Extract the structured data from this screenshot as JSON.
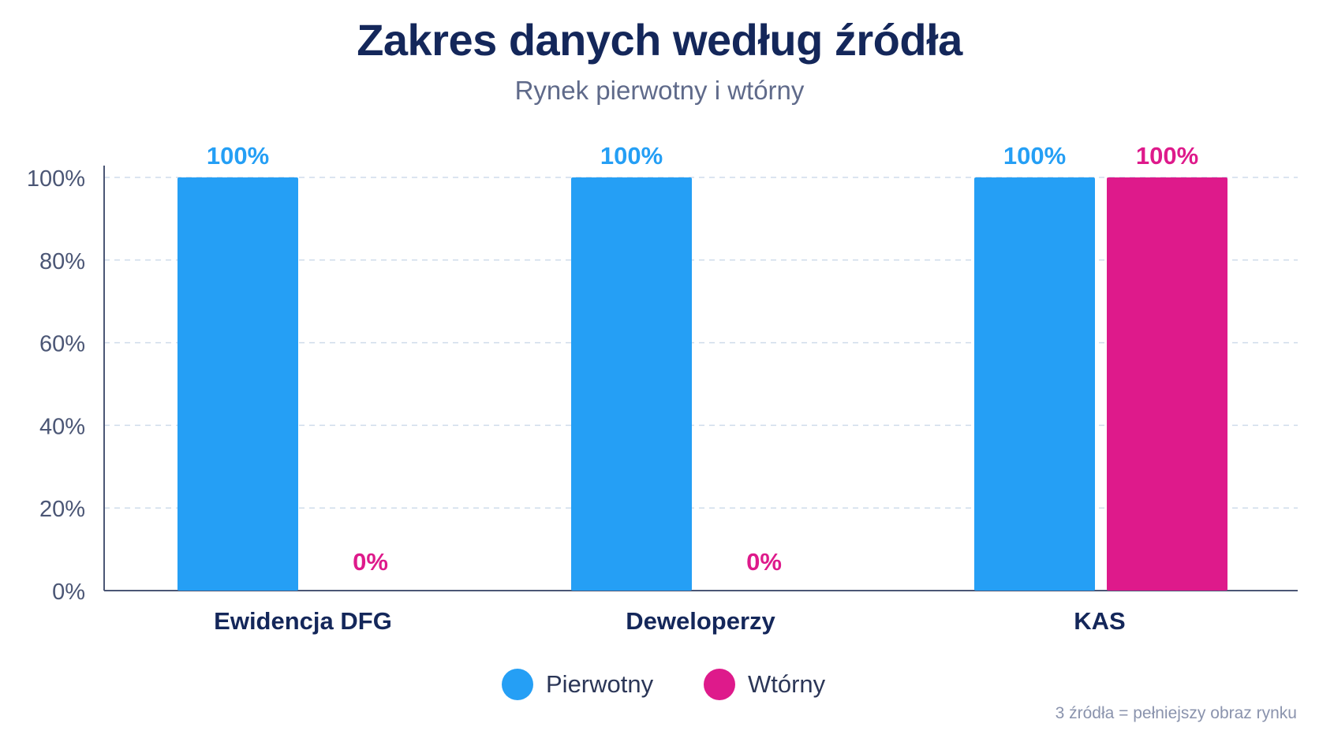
{
  "chart_data": {
    "type": "bar",
    "title": "Zakres danych według źródła",
    "subtitle": "Rynek pierwotny i wtórny",
    "categories": [
      "Ewidencja DFG",
      "Deweloperzy",
      "KAS"
    ],
    "series": [
      {
        "name": "Pierwotny",
        "values": [
          100,
          100,
          100
        ],
        "color": "#259ff5"
      },
      {
        "name": "Wtórny",
        "values": [
          0,
          0,
          100
        ],
        "color": "#de1a8b"
      }
    ],
    "data_labels": {
      "Pierwotny": [
        "100%",
        "100%",
        "100%"
      ],
      "Wtórny": [
        "0%",
        "0%",
        "100%"
      ]
    },
    "yticks": [
      0,
      20,
      40,
      60,
      80,
      100
    ],
    "ytick_labels": [
      "0%",
      "20%",
      "40%",
      "60%",
      "80%",
      "100%"
    ],
    "ylim": [
      0,
      100
    ],
    "grid": true,
    "legend_position": "bottom-center",
    "footnote": "3 źródła = pełniejszy obraz rynku"
  },
  "colors": {
    "axis": "#4b5675",
    "grid": "#cfdceb",
    "title": "#14275a",
    "category_label": "#14275a"
  }
}
